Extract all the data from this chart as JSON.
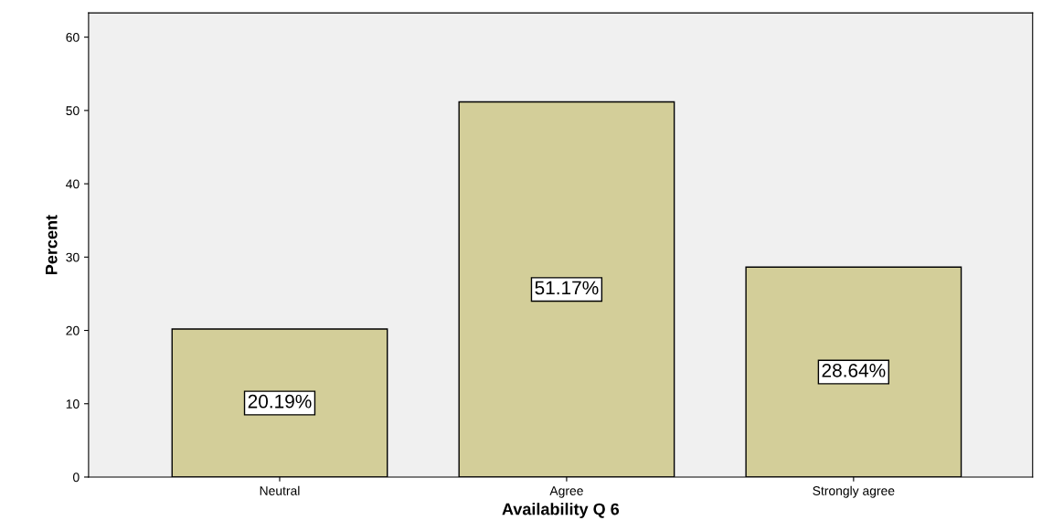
{
  "chart_data": {
    "type": "bar",
    "xlabel": "Availability Q 6",
    "ylabel": "Percent",
    "categories": [
      "Neutral",
      "Agree",
      "Strongly agree"
    ],
    "values": [
      20.19,
      51.17,
      28.64
    ],
    "value_labels": [
      "20.19%",
      "51.17%",
      "28.64%"
    ],
    "color": "#d3ce99",
    "ylim": [
      0,
      63.3
    ],
    "yticks": [
      0,
      10,
      20,
      30,
      40,
      50,
      60
    ],
    "grid": false,
    "legend": false
  }
}
